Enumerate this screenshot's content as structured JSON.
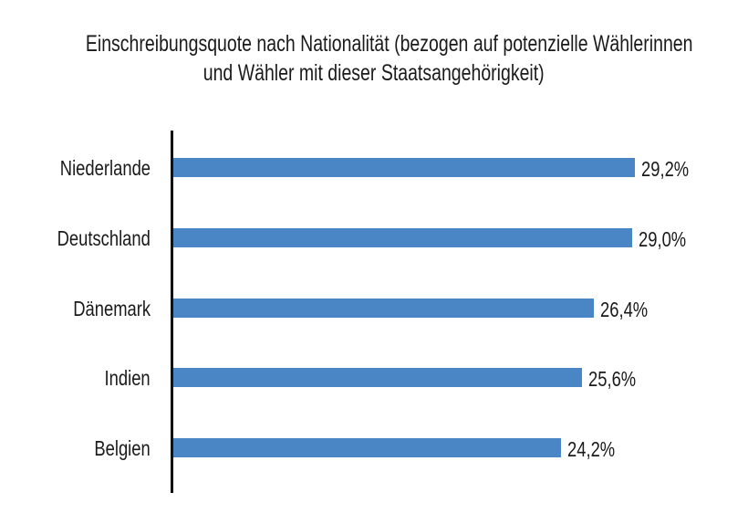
{
  "chart_data": {
    "type": "bar",
    "orientation": "horizontal",
    "title": "Einschreibungsquote nach Nationalität (bezogen auf potenzielle Wählerinnen und Wähler mit dieser Staatsangehörigkeit)",
    "title_lines": [
      "Einschreibungsquote nach Nationalität (bezogen auf potenzielle Wählerinnen",
      "und Wähler mit dieser Staatsangehörigkeit)"
    ],
    "categories": [
      "Niederlande",
      "Deutschland",
      "Dänemark",
      "Indien",
      "Belgien"
    ],
    "values": [
      29.2,
      29.0,
      26.4,
      25.6,
      24.2
    ],
    "value_labels": [
      "29,2%",
      "29,0%",
      "26,4%",
      "25,6%",
      "24,2%"
    ],
    "xlabel": "",
    "ylabel": "",
    "grid": false,
    "color": "#4a86c5"
  }
}
